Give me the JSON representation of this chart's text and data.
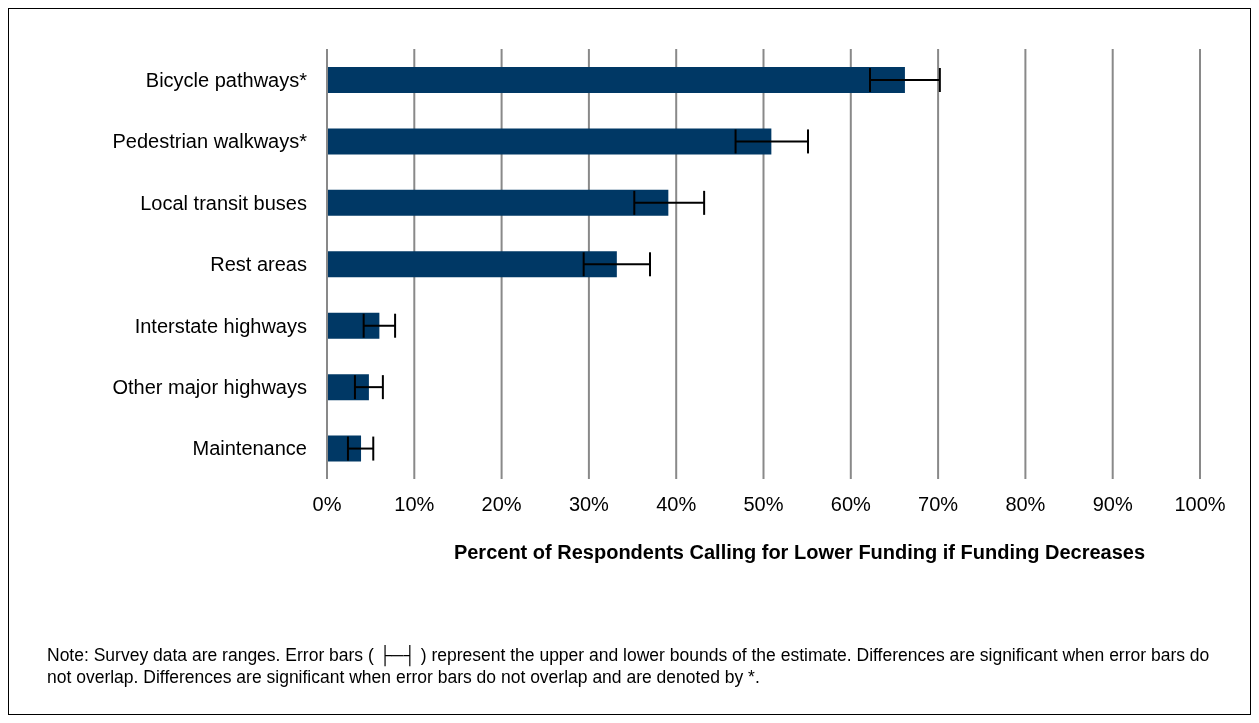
{
  "chart_data": {
    "type": "bar",
    "orientation": "horizontal",
    "categories": [
      "Bicycle pathways*",
      "Pedestrian walkways*",
      "Local transit buses",
      "Rest areas",
      "Interstate highways",
      "Other major highways",
      "Maintenance"
    ],
    "values": [
      66.2,
      50.9,
      39.1,
      33.2,
      6.0,
      4.8,
      3.9
    ],
    "errors": [
      [
        62.2,
        70.2
      ],
      [
        46.8,
        55.1
      ],
      [
        35.2,
        43.2
      ],
      [
        29.4,
        37.0
      ],
      [
        4.2,
        7.8
      ],
      [
        3.2,
        6.4
      ],
      [
        2.4,
        5.3
      ]
    ],
    "color": "#003865",
    "xlim": [
      0,
      100
    ],
    "xticks": [
      {
        "value": 0,
        "label": "0%"
      },
      {
        "value": 10,
        "label": "10%"
      },
      {
        "value": 20,
        "label": "20%"
      },
      {
        "value": 30,
        "label": "30%"
      },
      {
        "value": 40,
        "label": "40%"
      },
      {
        "value": 50,
        "label": "50%"
      },
      {
        "value": 60,
        "label": "60%"
      },
      {
        "value": 70,
        "label": "70%"
      },
      {
        "value": 80,
        "label": "80%"
      },
      {
        "value": 90,
        "label": "90%"
      },
      {
        "value": 100,
        "label": "100%"
      }
    ],
    "xlabel": "Percent of Respondents Calling for Lower Funding if Funding Decreases",
    "grid": "x",
    "annotations": [
      "Note: Survey data are ranges. Error bars ( ├─┤ ) represent the upper and lower bounds of the estimate. Differences are significant when error bars do not overlap. Differences are significant when error bars do not overlap and are denoted by *."
    ]
  }
}
